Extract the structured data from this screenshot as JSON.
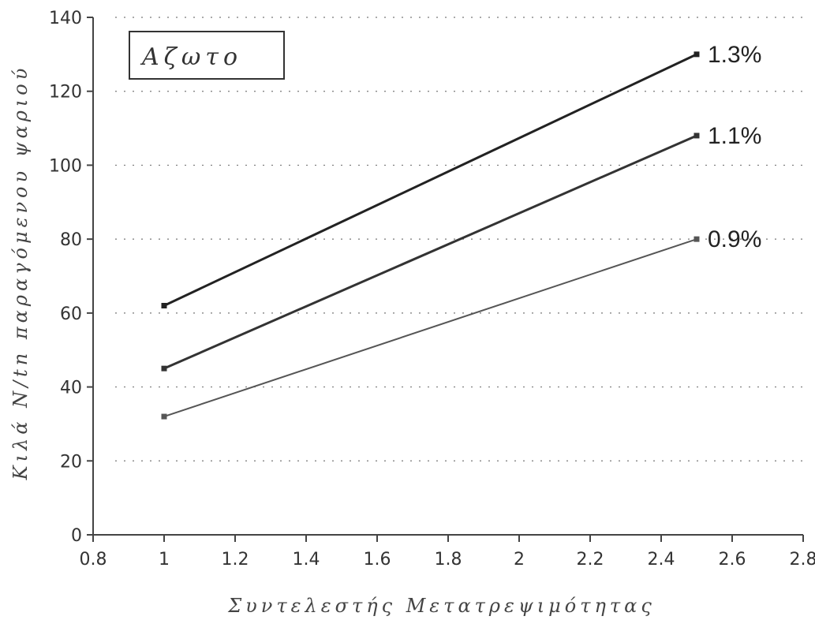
{
  "chart_data": {
    "type": "line",
    "title": "",
    "xlabel": "Συντελεστής Μετατρεψιμότητας",
    "ylabel": "Κιλά N/tn παραγόμενου ψαριού",
    "xlim": [
      0.8,
      2.8
    ],
    "ylim": [
      0,
      140
    ],
    "xticks": [
      "0.8",
      "1",
      "1.2",
      "1.4",
      "1.6",
      "1.8",
      "2",
      "2.2",
      "2.4",
      "2.6",
      "2.8"
    ],
    "yticks": [
      "0",
      "20",
      "40",
      "60",
      "80",
      "100",
      "120",
      "140"
    ],
    "grid": true,
    "legend": "top-left",
    "legend_text": "Αζωτο",
    "series": [
      {
        "name": "1.3%",
        "x": [
          1,
          2.5
        ],
        "y": [
          62,
          130
        ],
        "color": "#222222"
      },
      {
        "name": "1.1%",
        "x": [
          1,
          2.5
        ],
        "y": [
          45,
          108
        ],
        "color": "#333333"
      },
      {
        "name": "0.9%",
        "x": [
          1,
          2.5
        ],
        "y": [
          32,
          80
        ],
        "color": "#555555"
      }
    ]
  }
}
